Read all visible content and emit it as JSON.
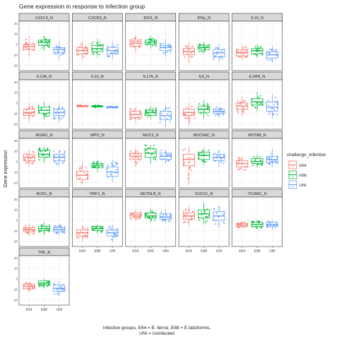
{
  "chart_data": {
    "type": "box",
    "title": "Gene expression in response to infection group",
    "xlabel_lines": [
      "Infection groups, E64 = E. ferrisi, E88 = E.falciformis,",
      "UNI = Uninfected"
    ],
    "ylabel": "Gene expression",
    "categories": [
      "E64",
      "E88",
      "UNI"
    ],
    "ylim": [
      -25,
      22
    ],
    "yticks": [
      20,
      10,
      0,
      -10,
      -20
    ],
    "legend": {
      "title": "challenge_infection",
      "position": "right",
      "entries": [
        {
          "name": "E64",
          "color": "#F8766D"
        },
        {
          "name": "E88",
          "color": "#00BA38"
        },
        {
          "name": "UNI",
          "color": "#619CFF"
        }
      ]
    },
    "facets": [
      {
        "name": "CXCL9_N",
        "boxes": [
          {
            "q1": -5,
            "med": -2,
            "q3": 0,
            "lo": -12,
            "hi": 8
          },
          {
            "q1": -1,
            "med": 2,
            "q3": 4,
            "lo": -6,
            "hi": 8
          },
          {
            "q1": -8,
            "med": -5,
            "q3": -3,
            "lo": -14,
            "hi": 3
          }
        ]
      },
      {
        "name": "CXCR3_N",
        "boxes": [
          {
            "q1": -9,
            "med": -6,
            "q3": -3,
            "lo": -15,
            "hi": 3
          },
          {
            "q1": -7,
            "med": -4,
            "q3": -1,
            "lo": -12,
            "hi": 5
          },
          {
            "q1": -9,
            "med": -6,
            "q3": -3,
            "lo": -14,
            "hi": 3
          }
        ]
      },
      {
        "name": "IDO1_N",
        "boxes": [
          {
            "q1": -2,
            "med": 1,
            "q3": 3,
            "lo": -8,
            "hi": 9
          },
          {
            "q1": 0,
            "med": 2,
            "q3": 4,
            "lo": -4,
            "hi": 8
          },
          {
            "q1": -6,
            "med": -3,
            "q3": -1,
            "lo": -12,
            "hi": 5
          }
        ]
      },
      {
        "name": "IFNy_N",
        "boxes": [
          {
            "q1": -10,
            "med": -7,
            "q3": -4,
            "lo": -18,
            "hi": 2
          },
          {
            "q1": -5,
            "med": -3,
            "q3": -1,
            "lo": -9,
            "hi": 2
          },
          {
            "q1": -12,
            "med": -8,
            "q3": -5,
            "lo": -17,
            "hi": 0
          }
        ]
      },
      {
        "name": "IL10_N",
        "boxes": [
          {
            "q1": -11,
            "med": -8,
            "q3": -5,
            "lo": -15,
            "hi": -1
          },
          {
            "q1": -9,
            "med": -6,
            "q3": -4,
            "lo": -13,
            "hi": 0
          },
          {
            "q1": -13,
            "med": -10,
            "q3": -7,
            "lo": -17,
            "hi": -2
          }
        ]
      },
      {
        "name": "IL12A_N",
        "boxes": [
          {
            "q1": -12,
            "med": -9,
            "q3": -6,
            "lo": -18,
            "hi": 0
          },
          {
            "q1": -10,
            "med": -7,
            "q3": -4,
            "lo": -16,
            "hi": 1
          },
          {
            "q1": -12,
            "med": -9,
            "q3": -6,
            "lo": -18,
            "hi": -1
          }
        ]
      },
      {
        "name": "IL13_N",
        "boxes": [
          {
            "q1": -3.5,
            "med": -3,
            "q3": -2.5,
            "lo": -4,
            "hi": -2
          },
          {
            "q1": -3.8,
            "med": -3.2,
            "q3": -2.7,
            "lo": -4.5,
            "hi": -2
          },
          {
            "q1": -4.5,
            "med": -4,
            "q3": -3.5,
            "lo": -5,
            "hi": -3
          }
        ]
      },
      {
        "name": "IL17A_N",
        "boxes": [
          {
            "q1": -14,
            "med": -11,
            "q3": -8,
            "lo": -19,
            "hi": -4
          },
          {
            "q1": -12,
            "med": -9,
            "q3": -7,
            "lo": -16,
            "hi": -3
          },
          {
            "q1": -16,
            "med": -12,
            "q3": -8,
            "lo": -23,
            "hi": -2
          }
        ]
      },
      {
        "name": "IL6_N",
        "boxes": [
          {
            "q1": -12,
            "med": -9,
            "q3": -6,
            "lo": -22,
            "hi": 0
          },
          {
            "q1": -9,
            "med": -6,
            "q3": -3,
            "lo": -15,
            "hi": 3
          },
          {
            "q1": -10,
            "med": -8,
            "q3": -6,
            "lo": -14,
            "hi": -4
          }
        ]
      },
      {
        "name": "IL1RN_N",
        "boxes": [
          {
            "q1": -6,
            "med": -3,
            "q3": 0,
            "lo": -12,
            "hi": 6
          },
          {
            "q1": -2,
            "med": 1,
            "q3": 4,
            "lo": -8,
            "hi": 10
          },
          {
            "q1": -8,
            "med": -4,
            "q3": 1,
            "lo": -15,
            "hi": 8
          }
        ]
      },
      {
        "name": "IRGM1_N",
        "boxes": [
          {
            "q1": 1,
            "med": 4,
            "q3": 7,
            "lo": -5,
            "hi": 11
          },
          {
            "q1": 4,
            "med": 7,
            "q3": 11,
            "lo": -1,
            "hi": 14
          },
          {
            "q1": 1,
            "med": 4,
            "q3": 7,
            "lo": -5,
            "hi": 11
          }
        ]
      },
      {
        "name": "MPO_N",
        "boxes": [
          {
            "q1": -17,
            "med": -13,
            "q3": -9,
            "lo": -22,
            "hi": -1
          },
          {
            "q1": -6,
            "med": -4,
            "q3": -2,
            "lo": -10,
            "hi": 1
          },
          {
            "q1": -14,
            "med": -10,
            "q3": -5,
            "lo": -20,
            "hi": 2
          }
        ]
      },
      {
        "name": "MUC2_N",
        "boxes": [
          {
            "q1": 2,
            "med": 5,
            "q3": 8,
            "lo": -5,
            "hi": 13
          },
          {
            "q1": 4,
            "med": 8,
            "q3": 12,
            "lo": -2,
            "hi": 16
          },
          {
            "q1": 2,
            "med": 5,
            "q3": 8,
            "lo": -2,
            "hi": 11
          }
        ]
      },
      {
        "name": "MUC5AC_N",
        "boxes": [
          {
            "q1": -4,
            "med": 2,
            "q3": 7,
            "lo": -22,
            "hi": 14
          },
          {
            "q1": 2,
            "med": 6,
            "q3": 9,
            "lo": -4,
            "hi": 13
          },
          {
            "q1": 1,
            "med": 4,
            "q3": 7,
            "lo": -5,
            "hi": 11
          }
        ]
      },
      {
        "name": "MYD88_N",
        "boxes": [
          {
            "q1": -5,
            "med": -2,
            "q3": 1,
            "lo": -8,
            "hi": 5
          },
          {
            "q1": -2,
            "med": 0,
            "q3": 3,
            "lo": -6,
            "hi": 7
          },
          {
            "q1": -1,
            "med": 2,
            "q3": 5,
            "lo": -5,
            "hi": 12
          }
        ]
      },
      {
        "name": "NCR1_N",
        "boxes": [
          {
            "q1": -11,
            "med": -9,
            "q3": -7,
            "lo": -15,
            "hi": -3
          },
          {
            "q1": -10,
            "med": -8,
            "q3": -6,
            "lo": -14,
            "hi": -2
          },
          {
            "q1": -11,
            "med": -9,
            "q3": -7,
            "lo": -15,
            "hi": -3
          }
        ]
      },
      {
        "name": "PRF1_N",
        "boxes": [
          {
            "q1": -15,
            "med": -12,
            "q3": -9,
            "lo": -20,
            "hi": -5
          },
          {
            "q1": -10,
            "med": -8,
            "q3": -6,
            "lo": -13,
            "hi": -4
          },
          {
            "q1": -15,
            "med": -12,
            "q3": -9,
            "lo": -21,
            "hi": -4
          }
        ]
      },
      {
        "name": "RETNLB_N",
        "boxes": [
          {
            "q1": 3,
            "med": 5,
            "q3": 7,
            "lo": 0,
            "hi": 10
          },
          {
            "q1": 2,
            "med": 4,
            "q3": 7,
            "lo": -2,
            "hi": 11
          },
          {
            "q1": 1,
            "med": 3,
            "q3": 6,
            "lo": -3,
            "hi": 10
          }
        ]
      },
      {
        "name": "SOCS1_N",
        "boxes": [
          {
            "q1": 1,
            "med": 4,
            "q3": 7,
            "lo": -5,
            "hi": 13
          },
          {
            "q1": 2,
            "med": 6,
            "q3": 10,
            "lo": -4,
            "hi": 17
          },
          {
            "q1": 0,
            "med": 4,
            "q3": 8,
            "lo": -7,
            "hi": 14
          }
        ]
      },
      {
        "name": "TICAM1_N",
        "boxes": [
          {
            "q1": -6,
            "med": -4.5,
            "q3": -3,
            "lo": -8,
            "hi": -1
          },
          {
            "q1": -6,
            "med": -4,
            "q3": -2,
            "lo": -8,
            "hi": 0
          },
          {
            "q1": -6,
            "med": -4,
            "q3": -2,
            "lo": -9,
            "hi": 0
          }
        ]
      },
      {
        "name": "TNF_N",
        "boxes": [
          {
            "q1": -9,
            "med": -7,
            "q3": -5,
            "lo": -12,
            "hi": -3
          },
          {
            "q1": -6,
            "med": -4,
            "q3": -2,
            "lo": -9,
            "hi": 0
          },
          {
            "q1": -12,
            "med": -9,
            "q3": -6,
            "lo": -16,
            "hi": -2
          }
        ]
      }
    ]
  }
}
